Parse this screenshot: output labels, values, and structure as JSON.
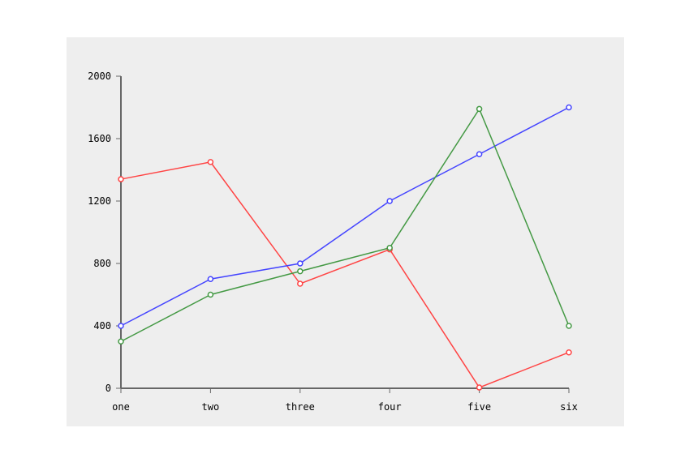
{
  "chart_data": {
    "type": "line",
    "title": "",
    "xlabel": "",
    "ylabel": "",
    "categories": [
      "one",
      "two",
      "three",
      "four",
      "five",
      "six"
    ],
    "ylim": [
      0,
      2000
    ],
    "yticks": [
      0,
      400,
      800,
      1200,
      1600,
      2000
    ],
    "grid": false,
    "legend": "none",
    "series": [
      {
        "color": "#ff4444",
        "values": [
          1340,
          1450,
          670,
          890,
          5,
          230
        ]
      },
      {
        "color": "#4444ff",
        "values": [
          400,
          700,
          800,
          1200,
          1500,
          1800
        ]
      },
      {
        "color": "#449944",
        "values": [
          300,
          600,
          750,
          900,
          1790,
          400
        ]
      }
    ]
  },
  "colors": {
    "panel_background": "#eeeeee",
    "axis": "#666666"
  }
}
